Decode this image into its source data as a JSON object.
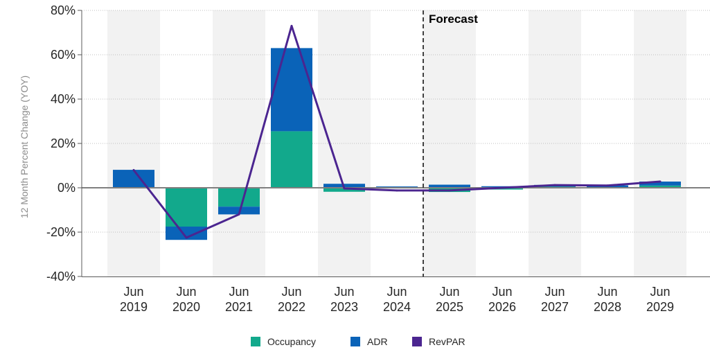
{
  "chart_data": {
    "type": "bar",
    "stacked": true,
    "title": "",
    "ylabel": "12 Month Percent Change (YOY)",
    "xlabel": "",
    "ylim": [
      -40,
      80
    ],
    "yticks": [
      -40,
      -20,
      0,
      20,
      40,
      60,
      80
    ],
    "ytick_labels": [
      "-40%",
      "-20%",
      "0%",
      "20%",
      "40%",
      "60%",
      "80%"
    ],
    "categories": [
      [
        "Jun",
        "2019"
      ],
      [
        "Jun",
        "2020"
      ],
      [
        "Jun",
        "2021"
      ],
      [
        "Jun",
        "2022"
      ],
      [
        "Jun",
        "2023"
      ],
      [
        "Jun",
        "2024"
      ],
      [
        "Jun",
        "2025"
      ],
      [
        "Jun",
        "2026"
      ],
      [
        "Jun",
        "2027"
      ],
      [
        "Jun",
        "2028"
      ],
      [
        "Jun",
        "2029"
      ]
    ],
    "series": [
      {
        "name": "Occupancy",
        "type": "bar",
        "color": "#12a98c",
        "values": [
          0.3,
          -17.5,
          -8.5,
          25.5,
          -1.8,
          0.2,
          -1.9,
          -0.8,
          0.5,
          0.3,
          1.0
        ]
      },
      {
        "name": "ADR",
        "type": "bar",
        "color": "#0a63b8",
        "values": [
          7.8,
          -6.0,
          -3.5,
          37.5,
          1.8,
          0.4,
          1.4,
          0.7,
          0.8,
          0.8,
          1.8
        ]
      },
      {
        "name": "RevPAR",
        "type": "line",
        "color": "#4b2590",
        "values": [
          8.0,
          -22.5,
          -12.0,
          73.0,
          -0.3,
          -1.2,
          -1.2,
          0.0,
          1.2,
          1.0,
          2.8
        ]
      }
    ],
    "forecast_start_index": 6,
    "annotation": "Forecast",
    "legend_position": "bottom-center",
    "grid": true,
    "alternating_bands": true
  }
}
